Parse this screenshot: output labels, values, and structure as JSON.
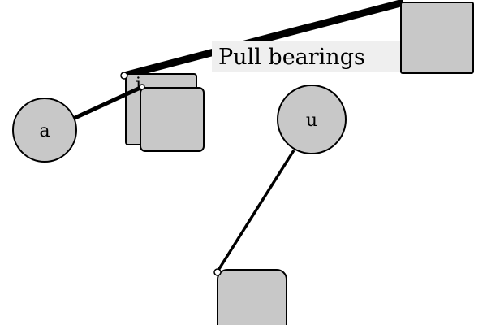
{
  "diagram": {
    "nodes": {
      "a": {
        "label": "a",
        "shape": "circle"
      },
      "u": {
        "label": "u",
        "shape": "circle"
      },
      "i": {
        "label": "i",
        "shape": "stacked-rounded-rect"
      },
      "top_right": {
        "label": "",
        "shape": "rect"
      },
      "bottom": {
        "label": "",
        "shape": "rounded-rect"
      }
    },
    "edges": [
      {
        "from": "a",
        "to": "i",
        "label": ""
      },
      {
        "from": "i",
        "to": "top_right",
        "label": "Pull bearings"
      },
      {
        "from": "u",
        "to": "bottom",
        "label": ""
      }
    ],
    "colors": {
      "node_fill": "#c8c8c8",
      "stroke": "#000000",
      "label_background": "#efefef",
      "page_background": "#ffffff"
    }
  }
}
